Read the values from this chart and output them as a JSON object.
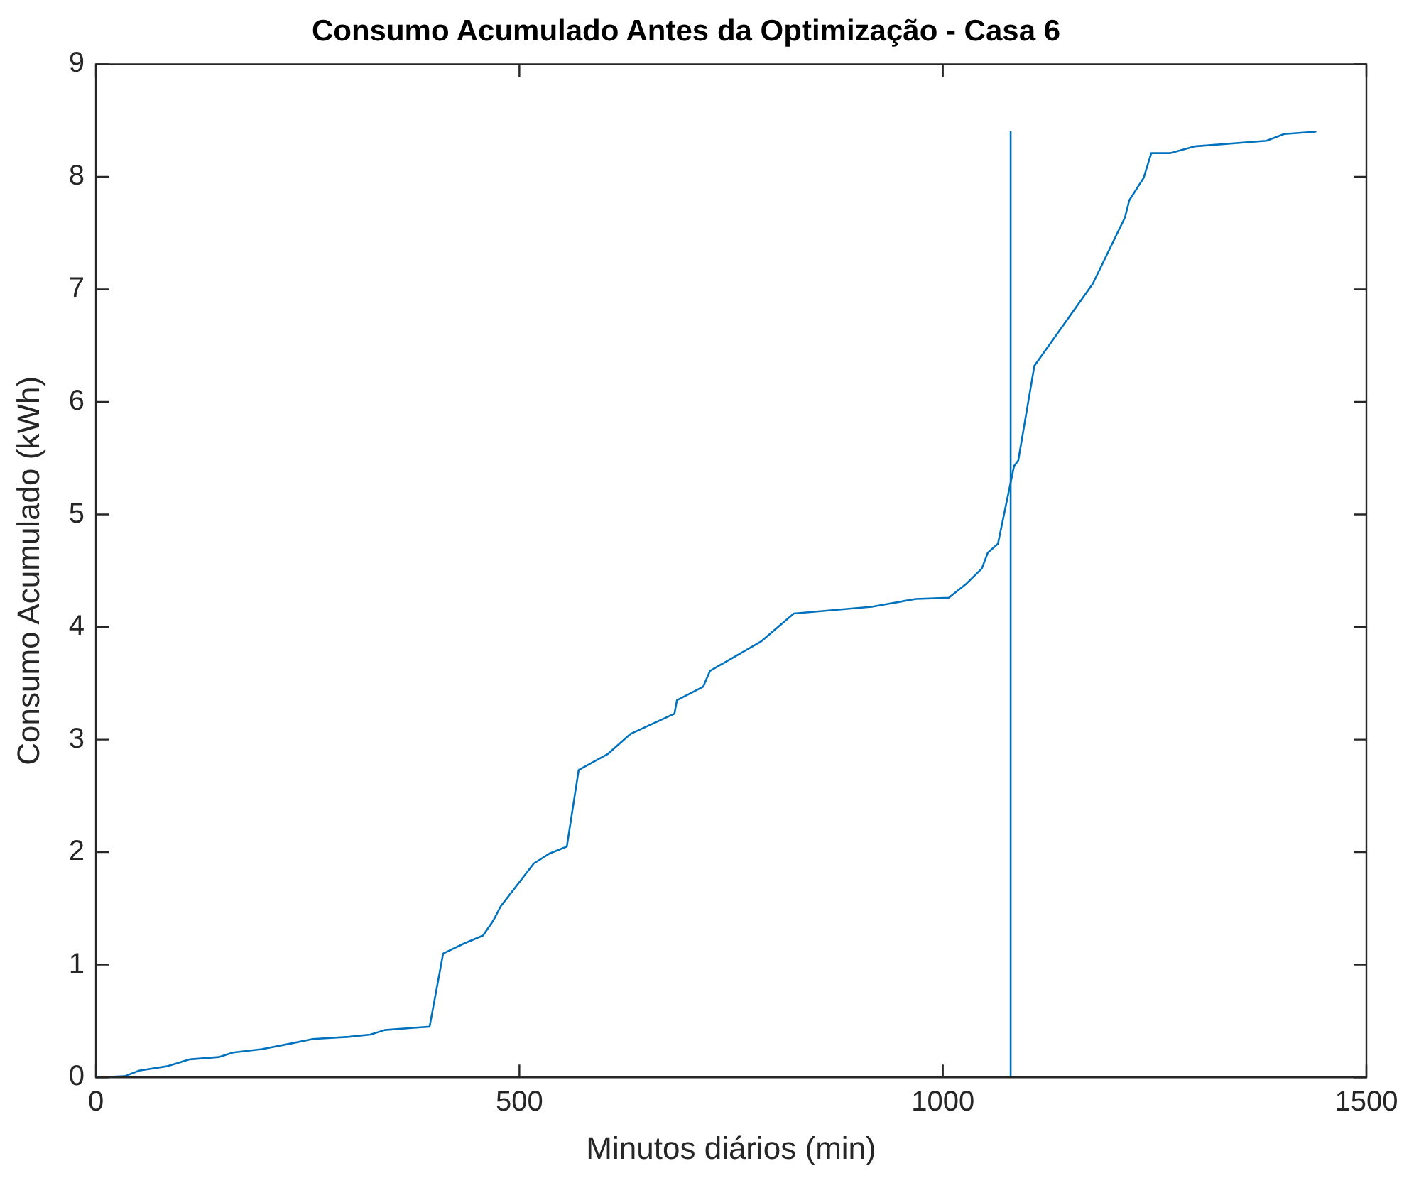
{
  "chart_data": {
    "type": "line",
    "title": "Consumo Acumulado Antes da Optimização - Casa 6",
    "xlabel": "Minutos diários (min)",
    "ylabel": "Consumo Acumulado (kWh)",
    "xlim": [
      0,
      1500
    ],
    "xticks": [
      0,
      500,
      1000,
      1500
    ],
    "ylim": [
      0,
      9
    ],
    "yticks": [
      0,
      1,
      2,
      3,
      4,
      5,
      6,
      7,
      8,
      9
    ],
    "grid": false,
    "legend": false,
    "marker": "none",
    "line_style": "solid",
    "series": [
      {
        "color": "#0072bd",
        "x": [
          0,
          34,
          51,
          85,
          111,
          145,
          162,
          196,
          230,
          256,
          299,
          324,
          341,
          375,
          394,
          410,
          435,
          457,
          469,
          478,
          517,
          536,
          556,
          570,
          604,
          631,
          683,
          686,
          717,
          725,
          785,
          824,
          916,
          968,
          1007,
          1027,
          1046,
          1053,
          1065,
          1084,
          1089,
          1108,
          1177,
          1215,
          1220,
          1237,
          1246,
          1268,
          1297,
          1382,
          1403,
          1440
        ],
        "values": [
          0,
          0.01,
          0.06,
          0.1,
          0.16,
          0.18,
          0.22,
          0.25,
          0.3,
          0.34,
          0.36,
          0.38,
          0.42,
          0.44,
          0.45,
          1.1,
          1.19,
          1.26,
          1.39,
          1.52,
          1.9,
          1.99,
          2.05,
          2.73,
          2.87,
          3.05,
          3.23,
          3.35,
          3.47,
          3.61,
          3.87,
          4.12,
          4.18,
          4.25,
          4.26,
          4.38,
          4.52,
          4.66,
          4.74,
          5.43,
          5.48,
          6.32,
          7.05,
          7.64,
          7.79,
          7.99,
          8.21,
          8.21,
          8.27,
          8.32,
          8.38,
          8.4
        ]
      },
      {
        "color": "#0072bd",
        "x": [
          1080,
          1080
        ],
        "values": [
          0,
          8.4
        ]
      }
    ]
  }
}
